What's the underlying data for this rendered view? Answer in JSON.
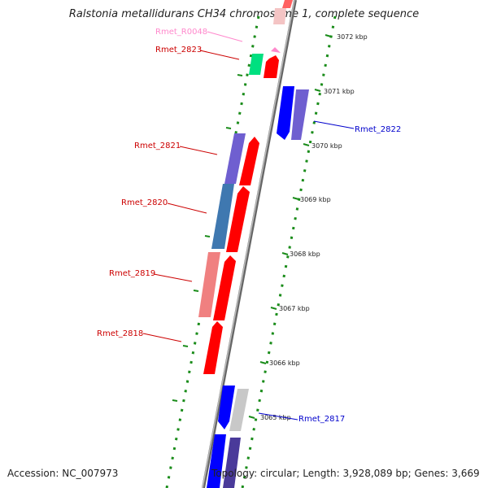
{
  "title": "Ralstonia metallidurans CH34 chromosome 1, complete sequence",
  "accession": "Accession: NC_007973",
  "stats": "Topology: circular; Length: 3,928,089 bp; Genes: 3,669",
  "colors": {
    "backbone": "#888888",
    "tick_dots": "#1a8c1a",
    "forward_red": "#ff0000",
    "forward_label": "#cc0000",
    "reverse_blue": "#0000ff",
    "reverse_label": "#0000cc",
    "purple": "#6f5fd0",
    "steel_blue": "#3f78b0",
    "salmon": "#f08080",
    "green": "#00e080",
    "gray": "#c8c8c8",
    "pink_label": "#ff88cc"
  },
  "ticks": [
    "3072 kbp",
    "3071 kbp",
    "3070 kbp",
    "3069 kbp",
    "3068 kbp",
    "3067 kbp",
    "3066 kbp",
    "3065 kbp"
  ],
  "genes": [
    {
      "name": "Rmet_R0048",
      "color": "#ff88cc"
    },
    {
      "name": "Rmet_2823",
      "color": "#cc0000"
    },
    {
      "name": "Rmet_2822",
      "color": "#0000cc"
    },
    {
      "name": "Rmet_2821",
      "color": "#cc0000"
    },
    {
      "name": "Rmet_2820",
      "color": "#cc0000"
    },
    {
      "name": "Rmet_2819",
      "color": "#cc0000"
    },
    {
      "name": "Rmet_2818",
      "color": "#cc0000"
    },
    {
      "name": "Rmet_2817",
      "color": "#0000cc"
    }
  ]
}
